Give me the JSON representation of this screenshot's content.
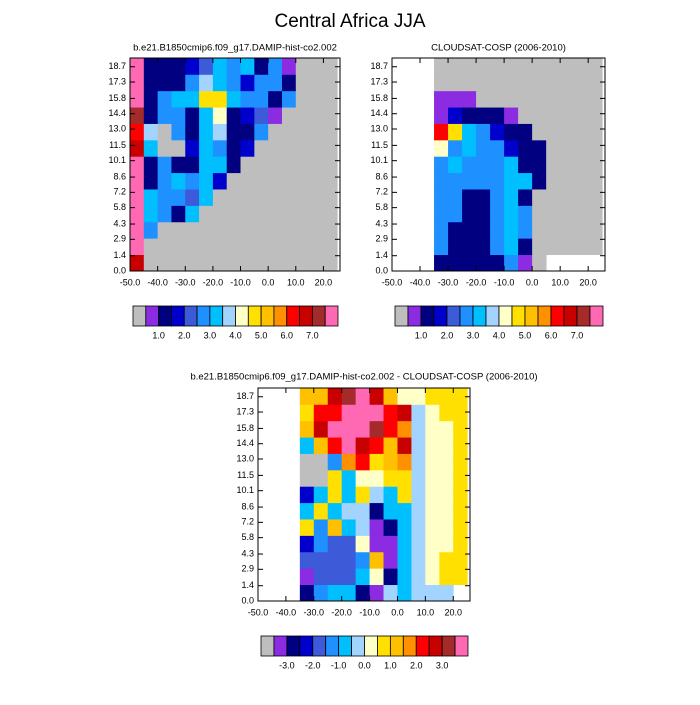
{
  "title": "Central Africa JJA",
  "chart_data": [
    {
      "type": "heatmap",
      "title": "b.e21.B1850cmip6.f09_g17.DAMIP-hist-co2.002",
      "xlim": [
        -50,
        26
      ],
      "ylim": [
        0,
        19.5
      ],
      "xticks": [
        {
          "value": -50,
          "label": "-50.0"
        },
        {
          "value": -40,
          "label": "-40.0"
        },
        {
          "value": -30,
          "label": "-30.0"
        },
        {
          "value": -20,
          "label": "-20.0"
        },
        {
          "value": -10,
          "label": "-10.0"
        },
        {
          "value": 0,
          "label": "0.0"
        },
        {
          "value": 10,
          "label": "10.0"
        },
        {
          "value": 20,
          "label": "20.0"
        }
      ],
      "yticks": [
        {
          "value": 0,
          "label": "0.0"
        },
        1.4,
        2.9,
        4.3,
        5.8,
        7.2,
        8.6,
        10.1,
        11.5,
        {
          "value": 13,
          "label": "13.0"
        },
        14.4,
        15.8,
        17.3,
        18.7
      ],
      "xbins": [
        -50,
        -45,
        -40,
        -35,
        -30,
        -25,
        -20,
        -15,
        -10,
        -5,
        0,
        5,
        10,
        15,
        20,
        25
      ],
      "ybins": [
        0,
        1.5,
        3,
        4.5,
        6,
        7.5,
        9,
        10.5,
        12,
        13.5,
        15,
        16.5,
        18,
        19.5
      ],
      "z": [
        [
          6.8,
          0,
          0,
          0,
          0,
          0,
          0,
          0,
          0,
          0,
          0,
          0,
          0,
          0,
          0
        ],
        [
          7.8,
          0,
          0,
          0,
          0,
          0,
          0,
          0,
          0,
          0,
          0,
          0,
          0,
          0,
          0
        ],
        [
          7.8,
          2.8,
          0,
          0,
          0,
          0,
          0,
          0,
          0,
          0,
          0,
          0,
          0,
          0,
          0
        ],
        [
          7.8,
          3.1,
          2.6,
          1.2,
          3.1,
          0,
          0,
          0,
          0,
          0,
          0,
          0,
          0,
          0,
          0
        ],
        [
          7.8,
          3.1,
          2.5,
          2.8,
          2.2,
          3.1,
          0,
          0,
          0,
          0,
          0,
          0,
          0,
          0,
          0
        ],
        [
          7.8,
          1.3,
          2.8,
          3.1,
          2.6,
          3.4,
          1.5,
          0,
          0,
          0,
          0,
          0,
          0,
          0,
          0
        ],
        [
          7.8,
          1.2,
          2.5,
          1.4,
          1.3,
          3.4,
          3.3,
          1.4,
          0,
          0,
          0,
          0,
          0,
          0,
          0
        ],
        [
          6.5,
          3.1,
          0,
          0.3,
          1.5,
          3.3,
          2.6,
          1.3,
          1.5,
          0,
          0,
          0,
          0,
          0,
          0
        ],
        [
          6,
          3.5,
          0,
          2.6,
          1.4,
          3.1,
          3.8,
          1.2,
          1.3,
          2.5,
          0,
          0,
          0,
          0,
          0
        ],
        [
          7,
          1.4,
          2.6,
          2.7,
          1.3,
          3.2,
          4.2,
          1.3,
          1.5,
          2.3,
          0.8,
          0,
          0,
          0,
          0
        ],
        [
          7.8,
          1.3,
          2.5,
          3.1,
          3.4,
          4.6,
          4.9,
          3.3,
          2.8,
          2.6,
          1.4,
          2.7,
          0,
          0,
          0
        ],
        [
          7.8,
          1.4,
          1.2,
          1.3,
          2.6,
          3.6,
          3.3,
          2.6,
          1.5,
          2.5,
          2.6,
          1.3,
          0,
          0,
          0
        ],
        [
          7.8,
          1.3,
          1.4,
          1.3,
          1.5,
          2.4,
          3.4,
          2.6,
          3.2,
          1.4,
          2.5,
          0.8,
          0,
          0,
          0
        ]
      ],
      "levels": [
        0.5,
        1,
        1.5,
        2,
        2.5,
        3,
        3.5,
        4,
        4.5,
        5,
        5.5,
        6,
        6.5,
        7,
        7.5
      ],
      "colors": [
        "#bebebe",
        "#8b2be2",
        "#000080",
        "#0000cd",
        "#3d5ad8",
        "#1e90ff",
        "#00bfff",
        "#a3d3ff",
        "#ffffc8",
        "#ffe000",
        "#ffc000",
        "#ff9000",
        "#ff0000",
        "#c80000",
        "#a52a2a",
        "#ff69b4"
      ],
      "colorbar_ticks": [
        {
          "value": 1,
          "label": "1.0"
        },
        {
          "value": 2,
          "label": "2.0"
        },
        {
          "value": 3,
          "label": "3.0"
        },
        {
          "value": 4,
          "label": "4.0"
        },
        {
          "value": 5,
          "label": "5.0"
        },
        {
          "value": 6,
          "label": "6.0"
        },
        {
          "value": 7,
          "label": "7.0"
        }
      ]
    },
    {
      "type": "heatmap",
      "title": "CLOUDSAT-COSP (2006-2010)",
      "xlim": [
        -50,
        26
      ],
      "ylim": [
        0,
        19.5
      ],
      "xticks": [
        {
          "value": -50,
          "label": "-50.0"
        },
        {
          "value": -40,
          "label": "-40.0"
        },
        {
          "value": -30,
          "label": "-30.0"
        },
        {
          "value": -20,
          "label": "-20.0"
        },
        {
          "value": -10,
          "label": "-10.0"
        },
        {
          "value": 0,
          "label": "0.0"
        },
        {
          "value": 10,
          "label": "10.0"
        },
        {
          "value": 20,
          "label": "20.0"
        }
      ],
      "yticks": [
        {
          "value": 0,
          "label": "0.0"
        },
        1.4,
        2.9,
        4.3,
        5.8,
        7.2,
        8.6,
        10.1,
        11.5,
        {
          "value": 13,
          "label": "13.0"
        },
        14.4,
        15.8,
        17.3,
        18.7
      ],
      "xbins": [
        -50,
        -45,
        -40,
        -35,
        -30,
        -25,
        -20,
        -15,
        -10,
        -5,
        0,
        5,
        10,
        15,
        20,
        25
      ],
      "ybins": [
        0,
        1.5,
        3,
        4.5,
        6,
        7.5,
        9,
        10.5,
        12,
        13.5,
        15,
        16.5,
        18,
        19.5
      ],
      "z": [
        [
          null,
          null,
          null,
          1.3,
          1.2,
          1.3,
          1.4,
          1.2,
          2.6,
          0.8,
          0,
          null,
          null,
          null,
          null
        ],
        [
          null,
          null,
          null,
          2.7,
          1.3,
          1.2,
          1.2,
          2.6,
          3.3,
          1.3,
          0,
          0,
          0,
          0,
          0
        ],
        [
          null,
          null,
          null,
          2.6,
          1.2,
          1.2,
          1.3,
          2.7,
          3.2,
          2.6,
          0,
          0,
          0,
          0,
          0
        ],
        [
          null,
          null,
          null,
          2.8,
          2.6,
          1.2,
          1.2,
          2.8,
          3.4,
          2.6,
          0,
          0,
          0,
          0,
          0
        ],
        [
          null,
          null,
          null,
          2.5,
          2.7,
          1.3,
          1.2,
          2.6,
          3.4,
          1.4,
          0,
          0,
          0,
          0,
          0
        ],
        [
          null,
          null,
          null,
          2.6,
          2.6,
          2.7,
          2.6,
          2.8,
          3.3,
          3.4,
          1.3,
          0,
          0,
          0,
          0
        ],
        [
          null,
          null,
          null,
          2.8,
          3.1,
          2.5,
          2.6,
          2.7,
          3.4,
          1.3,
          1.4,
          0,
          0,
          0,
          0
        ],
        [
          null,
          null,
          null,
          4.3,
          2.8,
          3.3,
          2.6,
          2.7,
          1.6,
          1.3,
          1.2,
          0,
          0,
          0,
          0
        ],
        [
          null,
          null,
          null,
          6,
          4.6,
          3.2,
          2.8,
          1.6,
          1.3,
          1.2,
          0,
          0,
          0,
          0,
          0
        ],
        [
          null,
          null,
          null,
          0.8,
          1.5,
          1.3,
          1.2,
          1.3,
          0.8,
          0,
          0,
          0,
          0,
          0,
          0
        ],
        [
          null,
          null,
          null,
          0.8,
          0.8,
          0.8,
          0,
          0,
          0,
          0,
          0,
          0,
          0,
          0,
          0
        ],
        [
          null,
          null,
          null,
          0,
          0,
          0,
          0,
          0,
          0,
          0,
          0,
          0,
          0,
          0,
          0
        ],
        [
          null,
          null,
          null,
          0,
          0,
          0,
          0,
          0,
          0,
          0,
          0,
          0,
          0,
          0,
          0
        ]
      ],
      "levels": [
        0.5,
        1,
        1.5,
        2,
        2.5,
        3,
        3.5,
        4,
        4.5,
        5,
        5.5,
        6,
        6.5,
        7,
        7.5
      ],
      "colors": [
        "#bebebe",
        "#8b2be2",
        "#000080",
        "#0000cd",
        "#3d5ad8",
        "#1e90ff",
        "#00bfff",
        "#a3d3ff",
        "#ffffc8",
        "#ffe000",
        "#ffc000",
        "#ff9000",
        "#ff0000",
        "#c80000",
        "#a52a2a",
        "#ff69b4"
      ],
      "colorbar_ticks": [
        {
          "value": 1,
          "label": "1.0"
        },
        {
          "value": 2,
          "label": "2.0"
        },
        {
          "value": 3,
          "label": "3.0"
        },
        {
          "value": 4,
          "label": "4.0"
        },
        {
          "value": 5,
          "label": "5.0"
        },
        {
          "value": 6,
          "label": "6.0"
        },
        {
          "value": 7,
          "label": "7.0"
        }
      ]
    },
    {
      "type": "heatmap",
      "title": "b.e21.B1850cmip6.f09_g17.DAMIP-hist-co2.002 - CLOUDSAT-COSP (2006-2010)",
      "xlim": [
        -50,
        26
      ],
      "ylim": [
        0,
        19.5
      ],
      "xticks": [
        {
          "value": -50,
          "label": "-50.0"
        },
        {
          "value": -40,
          "label": "-40.0"
        },
        {
          "value": -30,
          "label": "-30.0"
        },
        {
          "value": -20,
          "label": "-20.0"
        },
        {
          "value": -10,
          "label": "-10.0"
        },
        {
          "value": 0,
          "label": "0.0"
        },
        {
          "value": 10,
          "label": "10.0"
        },
        {
          "value": 20,
          "label": "20.0"
        }
      ],
      "yticks": [
        {
          "value": 0,
          "label": "0.0"
        },
        1.4,
        2.9,
        4.3,
        5.8,
        7.2,
        8.6,
        10.1,
        11.5,
        {
          "value": 13,
          "label": "13.0"
        },
        14.4,
        15.8,
        17.3,
        18.7
      ],
      "xbins": [
        -50,
        -45,
        -40,
        -35,
        -30,
        -25,
        -20,
        -15,
        -10,
        -5,
        0,
        5,
        10,
        15,
        20,
        25
      ],
      "ybins": [
        0,
        1.5,
        3,
        4.5,
        6,
        7.5,
        9,
        10.5,
        12,
        13.5,
        15,
        16.5,
        18,
        19.5
      ],
      "z": [
        [
          null,
          null,
          null,
          -3,
          -1.2,
          -0.8,
          -0.9,
          -2.7,
          -3.2,
          -0.5,
          -0.6,
          -0.4,
          -0.5,
          -0.4,
          null
        ],
        [
          null,
          null,
          null,
          -3.2,
          -1.7,
          -1.6,
          -1.6,
          -0.8,
          0.4,
          -3,
          -0.6,
          -0.5,
          0.2,
          0.7,
          0.7
        ],
        [
          null,
          null,
          null,
          -2,
          -1.8,
          -1.6,
          -1.7,
          -1.4,
          1,
          -3.2,
          -0.7,
          -0.4,
          0.2,
          0.7,
          0.7
        ],
        [
          null,
          null,
          null,
          -2.5,
          -1.5,
          -1.7,
          -1.7,
          0.4,
          -3.2,
          -3.3,
          -0.6,
          -0.4,
          0.2,
          0.2,
          0.7
        ],
        [
          null,
          null,
          null,
          0.6,
          -1.3,
          1.3,
          -0.8,
          -0.5,
          -3.2,
          -3,
          -0.6,
          -0.4,
          0.2,
          0.2,
          0.7
        ],
        [
          null,
          null,
          null,
          -1,
          0.8,
          -1,
          -0.3,
          -0.4,
          -2.8,
          -0.7,
          -0.6,
          -0.4,
          0.2,
          0.2,
          0.7
        ],
        [
          null,
          null,
          null,
          -2.3,
          -0.8,
          0.7,
          -0.9,
          0.5,
          -0.5,
          -0.8,
          0.8,
          -0.4,
          0.2,
          0.2,
          0.7
        ],
        [
          null,
          null,
          null,
          -3.8,
          -3.8,
          0.8,
          -0.8,
          0.3,
          0.4,
          0.8,
          0.5,
          -0.4,
          0.2,
          0.2,
          0.7
        ],
        [
          null,
          null,
          null,
          -3.8,
          -3.8,
          -1.3,
          1.5,
          2.4,
          0.8,
          1.3,
          1.5,
          -0.5,
          0.2,
          0.2,
          0.7
        ],
        [
          null,
          null,
          null,
          -0.8,
          1.3,
          2.3,
          3.6,
          2.8,
          2.2,
          1.3,
          2.5,
          -0.4,
          0.2,
          0.2,
          0.7
        ],
        [
          null,
          null,
          null,
          1.3,
          2.8,
          3.7,
          3.8,
          3.8,
          3.3,
          2.4,
          1.7,
          -0.4,
          0.2,
          0.2,
          0.7
        ],
        [
          null,
          null,
          null,
          0.6,
          2.4,
          2.3,
          3.8,
          3.8,
          3.7,
          2.4,
          2.7,
          -0.4,
          0.2,
          0.7,
          0.7
        ],
        [
          null,
          null,
          null,
          1.3,
          1.4,
          2.6,
          3.2,
          3.8,
          2.7,
          1.3,
          0.4,
          0.3,
          0.7,
          0.7,
          0.7
        ]
      ],
      "levels": [
        -3.5,
        -3,
        -2.5,
        -2,
        -1.5,
        -1,
        -0.5,
        0,
        0.5,
        1,
        1.5,
        2,
        2.5,
        3,
        3.5
      ],
      "colors": [
        "#bebebe",
        "#8b2be2",
        "#000080",
        "#0000cd",
        "#3d5ad8",
        "#1e90ff",
        "#00bfff",
        "#a3d3ff",
        "#ffffc8",
        "#ffe000",
        "#ffc000",
        "#ff9000",
        "#ff0000",
        "#c80000",
        "#a52a2a",
        "#ff69b4"
      ],
      "colorbar_ticks": [
        {
          "value": -3,
          "label": "-3.0"
        },
        {
          "value": -2,
          "label": "-2.0"
        },
        {
          "value": -1,
          "label": "-1.0"
        },
        {
          "value": 0,
          "label": "0.0"
        },
        {
          "value": 1,
          "label": "1.0"
        },
        {
          "value": 2,
          "label": "2.0"
        },
        {
          "value": 3,
          "label": "3.0"
        }
      ]
    }
  ]
}
